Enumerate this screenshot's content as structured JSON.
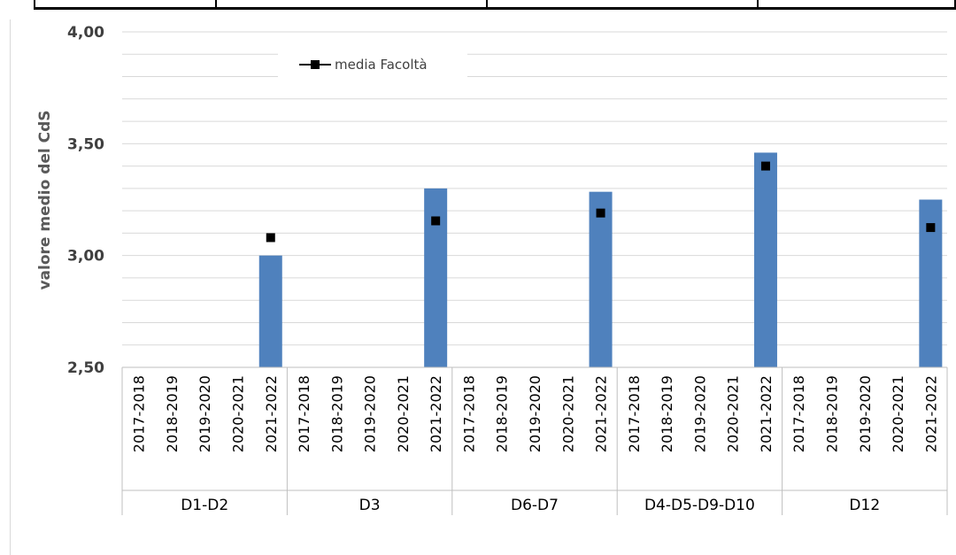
{
  "chart_data": {
    "type": "bar",
    "ylabel": "valore medio del CdS",
    "ylim": [
      2.5,
      4.0
    ],
    "y_ticks": [
      "2,50",
      "3,00",
      "3,50",
      "4,00"
    ],
    "grid": "horizontal",
    "groups": [
      {
        "label": "D1-D2",
        "categories": [
          "2017-2018",
          "2018-2019",
          "2019-2020",
          "2020-2021",
          "2021-2022"
        ],
        "values": [
          null,
          null,
          null,
          null,
          3.0
        ],
        "media": [
          null,
          null,
          null,
          null,
          3.08
        ]
      },
      {
        "label": "D3",
        "categories": [
          "2017-2018",
          "2018-2019",
          "2019-2020",
          "2020-2021",
          "2021-2022"
        ],
        "values": [
          null,
          null,
          null,
          null,
          3.3
        ],
        "media": [
          null,
          null,
          null,
          null,
          3.155
        ]
      },
      {
        "label": "D6-D7",
        "categories": [
          "2017-2018",
          "2018-2019",
          "2019-2020",
          "2020-2021",
          "2021-2022"
        ],
        "values": [
          null,
          null,
          null,
          null,
          3.285
        ],
        "media": [
          null,
          null,
          null,
          null,
          3.19
        ]
      },
      {
        "label": "D4-D5-D9-D10",
        "categories": [
          "2017-2018",
          "2018-2019",
          "2019-2020",
          "2020-2021",
          "2021-2022"
        ],
        "values": [
          null,
          null,
          null,
          null,
          3.46
        ],
        "media": [
          null,
          null,
          null,
          null,
          3.4
        ]
      },
      {
        "label": "D12",
        "categories": [
          "2017-2018",
          "2018-2019",
          "2019-2020",
          "2020-2021",
          "2021-2022"
        ],
        "values": [
          null,
          null,
          null,
          null,
          3.25
        ],
        "media": [
          null,
          null,
          null,
          null,
          3.125
        ]
      }
    ],
    "legend": {
      "position": "top-left",
      "entries": [
        "media Facoltà"
      ]
    },
    "colors": {
      "bar": "#4f81bd",
      "marker": "#000000",
      "grid": "#d9d9d9",
      "axis": "#bfbfbf"
    }
  }
}
